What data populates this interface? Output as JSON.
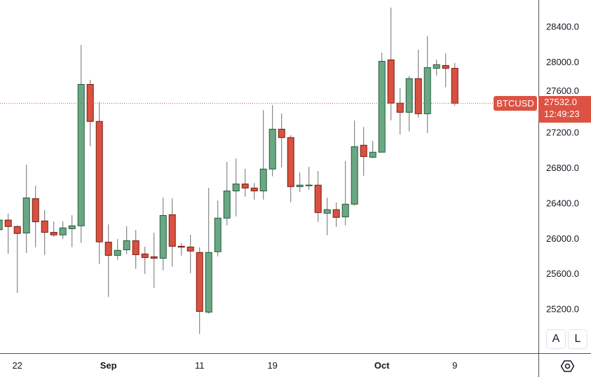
{
  "chart_data": {
    "type": "candlestick",
    "symbol": "BTCUSD",
    "last_price": "27532.0",
    "countdown": "12:49:23",
    "ylim": [
      24900,
      28700
    ],
    "yticks": [
      "25200.0",
      "25600.0",
      "26000.0",
      "26400.0",
      "26800.0",
      "27200.0",
      "27600.0",
      "28000.0",
      "28400.0"
    ],
    "xticks": [
      {
        "index": 2,
        "label": "22"
      },
      {
        "index": 12,
        "label": "Sep"
      },
      {
        "index": 22,
        "label": "11"
      },
      {
        "index": 30,
        "label": "19"
      },
      {
        "index": 42,
        "label": "Oct"
      },
      {
        "index": 50,
        "label": "9"
      }
    ],
    "colors": {
      "up": "#6aa785",
      "up_border": "#225b3a",
      "down": "#d9513f",
      "down_border": "#7a1a14",
      "wick": "#707070",
      "last": "#dd5242"
    },
    "candles": [
      [
        26099,
        26236,
        26072,
        26208
      ],
      [
        26208,
        26282,
        25827,
        26135
      ],
      [
        26135,
        26148,
        25383,
        26056
      ],
      [
        26061,
        26835,
        25835,
        26459
      ],
      [
        26451,
        26598,
        25901,
        26189
      ],
      [
        26198,
        26320,
        25813,
        26069
      ],
      [
        26069,
        26192,
        26018,
        26040
      ],
      [
        26040,
        26192,
        25996,
        26119
      ],
      [
        26110,
        26263,
        25901,
        26143
      ],
      [
        26143,
        28192,
        25950,
        27745
      ],
      [
        27745,
        27797,
        27045,
        27326
      ],
      [
        27326,
        27549,
        25710,
        25961
      ],
      [
        25958,
        26159,
        25337,
        25808
      ],
      [
        25808,
        25993,
        25759,
        25865
      ],
      [
        25871,
        26138,
        25822,
        25974
      ],
      [
        25974,
        26097,
        25655,
        25816
      ],
      [
        25824,
        25906,
        25598,
        25783
      ],
      [
        25792,
        26064,
        25440,
        25775
      ],
      [
        25775,
        26462,
        25639,
        26260
      ],
      [
        26268,
        26454,
        25680,
        25911
      ],
      [
        25911,
        25947,
        25805,
        25901
      ],
      [
        25903,
        26042,
        25606,
        25857
      ],
      [
        25841,
        25898,
        24917,
        25173
      ],
      [
        25165,
        26574,
        25146,
        25841
      ],
      [
        25849,
        26429,
        25797,
        26230
      ],
      [
        26230,
        26868,
        26148,
        26538
      ],
      [
        26538,
        26906,
        26249,
        26617
      ],
      [
        26617,
        26789,
        26473,
        26571
      ],
      [
        26571,
        26628,
        26440,
        26538
      ],
      [
        26538,
        27454,
        26440,
        26786
      ],
      [
        26786,
        27511,
        26704,
        27238
      ],
      [
        27238,
        27416,
        26805,
        27143
      ],
      [
        27143,
        27170,
        26410,
        26587
      ],
      [
        26587,
        26748,
        26527,
        26604
      ],
      [
        26604,
        26811,
        26552,
        26605
      ],
      [
        26604,
        26764,
        26189,
        26293
      ],
      [
        26285,
        26462,
        26037,
        26326
      ],
      [
        26326,
        26407,
        26132,
        26238
      ],
      [
        26244,
        26876,
        26148,
        26388
      ],
      [
        26388,
        27337,
        26372,
        27040
      ],
      [
        27056,
        27263,
        26710,
        26928
      ],
      [
        26920,
        27105,
        26909,
        26977
      ],
      [
        26977,
        28105,
        26977,
        28007
      ],
      [
        28023,
        28615,
        27339,
        27533
      ],
      [
        27533,
        27702,
        27178,
        27429
      ],
      [
        27429,
        27841,
        27211,
        27811
      ],
      [
        27811,
        28138,
        27369,
        27413
      ],
      [
        27413,
        28296,
        27195,
        27936
      ],
      [
        27928,
        28026,
        27846,
        27969
      ],
      [
        27960,
        28097,
        27713,
        27928
      ],
      [
        27928,
        27988,
        27505,
        27532
      ]
    ]
  },
  "controls": {
    "auto_label": "A",
    "log_label": "L"
  }
}
